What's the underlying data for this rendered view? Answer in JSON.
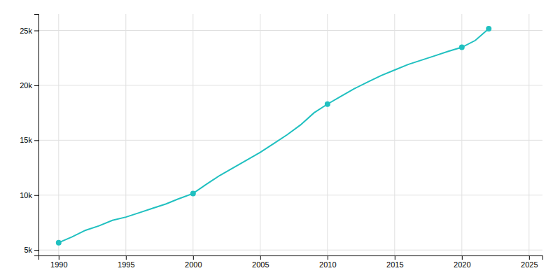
{
  "chart_data": {
    "type": "line",
    "x": [
      1990,
      1991,
      1992,
      1993,
      1994,
      1995,
      1996,
      1997,
      1998,
      1999,
      2000,
      2001,
      2002,
      2003,
      2004,
      2005,
      2006,
      2007,
      2008,
      2009,
      2010,
      2011,
      2012,
      2013,
      2014,
      2015,
      2016,
      2017,
      2018,
      2019,
      2020,
      2021,
      2022
    ],
    "series": [
      {
        "type": "line",
        "color": "#20C0C0",
        "values": [
          5668,
          6200,
          6800,
          7200,
          7700,
          8000,
          8400,
          8800,
          9200,
          9700,
          10148,
          11000,
          11800,
          12500,
          13200,
          13900,
          14700,
          15500,
          16400,
          17500,
          18291,
          19000,
          19700,
          20300,
          20900,
          21400,
          21900,
          22300,
          22700,
          23100,
          23466,
          24091,
          25164
        ]
      },
      {
        "type": "scatter",
        "marker": "circle",
        "color": "#20C0C0",
        "x": [
          1990,
          2000,
          2010,
          2020,
          2022
        ],
        "values": [
          5668,
          10148,
          18291,
          23466,
          25164
        ]
      }
    ],
    "xlim": [
      1988.5,
      2026
    ],
    "ylim": [
      4500,
      26500
    ],
    "xticks": [
      1990,
      1995,
      2000,
      2005,
      2010,
      2015,
      2020,
      2025
    ],
    "yticks": [
      {
        "value": 5000,
        "label": "5k"
      },
      {
        "value": 10000,
        "label": "10k"
      },
      {
        "value": 15000,
        "label": "15k"
      },
      {
        "value": 20000,
        "label": "20k"
      },
      {
        "value": 25000,
        "label": "25k"
      }
    ],
    "grid": true
  }
}
